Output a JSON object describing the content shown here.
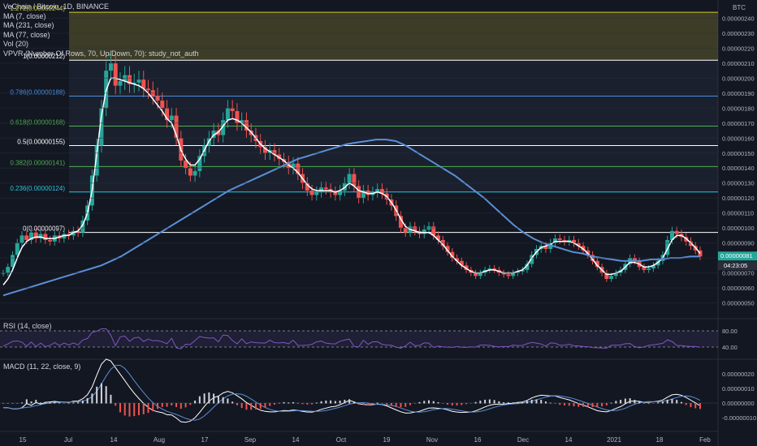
{
  "legend": {
    "title": "VeChain / Bitcoin, 1D, BINANCE",
    "ma7": "MA (7, close)",
    "ma231": "MA (231, close)",
    "ma77": "MA (77, close)",
    "vol": "Vol (20)",
    "vpvr": "VPVR (Number Of Rows, 70, Up/Down, 70): study_not_auth"
  },
  "axis_badge": "BTC",
  "rsi_label": "RSI (14, close)",
  "macd_label": "MACD (11, 22, close, 9)",
  "colors": {
    "background": "#131722",
    "up_candle": "#26a69a",
    "down_candle": "#ef5350",
    "ma_short": "#ffffff",
    "ma_long": "#5b8fd6",
    "rsi_line": "#7e57c2",
    "fib_green": "#4caf50",
    "fib_teal": "#26c6da",
    "fib_blue": "#2962ff"
  },
  "chart_data": {
    "type": "candlestick",
    "x_tick_labels": [
      "15",
      "Jul",
      "14",
      "Aug",
      "17",
      "Sep",
      "14",
      "Oct",
      "19",
      "Nov",
      "16",
      "Dec",
      "14",
      "2021",
      "18",
      "Feb"
    ],
    "price_axis": {
      "ylim": [
        4e-07,
        2.5e-06
      ],
      "tick_labels": [
        "0.00000050",
        "0.00000060",
        "0.00000070",
        "0.00000080",
        "0.00000090",
        "0.00000100",
        "0.00000110",
        "0.00000120",
        "0.00000130",
        "0.00000140",
        "0.00000150",
        "0.00000160",
        "0.00000170",
        "0.00000180",
        "0.00000190",
        "0.00000200",
        "0.00000210",
        "0.00000220",
        "0.00000230",
        "0.00000240"
      ],
      "current_price_label": "0.00000081",
      "countdown_label": "04:23:05"
    },
    "fib_levels": [
      {
        "label": "1.272(0.00000244)",
        "value": 2.44e-06,
        "color": "#d4d02a"
      },
      {
        "label": "1(0.00000212)",
        "value": 2.12e-06,
        "color": "#ffffff"
      },
      {
        "label": "0.786(0.00000188)",
        "value": 1.88e-06,
        "color": "#4a90e2"
      },
      {
        "label": "0.618(0.00000168)",
        "value": 1.68e-06,
        "color": "#4caf50"
      },
      {
        "label": "0.5(0.00000155)",
        "value": 1.55e-06,
        "color": "#ffffff"
      },
      {
        "label": "0.382(0.00000141)",
        "value": 1.41e-06,
        "color": "#4caf50"
      },
      {
        "label": "0.236(0.00000124)",
        "value": 1.24e-06,
        "color": "#26c6da"
      },
      {
        "label": "0(0.00000097)",
        "value": 9.7e-07,
        "color": "#ffffff"
      }
    ],
    "close_series": [
      0.7,
      0.74,
      0.82,
      0.9,
      0.95,
      0.92,
      0.97,
      0.93,
      0.96,
      0.92,
      0.91,
      0.95,
      0.93,
      0.96,
      0.95,
      0.98,
      0.97,
      1.05,
      1.15,
      1.35,
      1.55,
      1.8,
      2.05,
      2.1,
      1.95,
      1.98,
      2.02,
      1.96,
      1.97,
      1.99,
      1.93,
      1.92,
      1.88,
      1.85,
      1.8,
      1.72,
      1.75,
      1.6,
      1.45,
      1.4,
      1.35,
      1.38,
      1.48,
      1.55,
      1.6,
      1.65,
      1.62,
      1.72,
      1.8,
      1.78,
      1.7,
      1.72,
      1.65,
      1.62,
      1.58,
      1.54,
      1.5,
      1.52,
      1.49,
      1.46,
      1.44,
      1.4,
      1.43,
      1.36,
      1.3,
      1.25,
      1.22,
      1.24,
      1.27,
      1.26,
      1.24,
      1.22,
      1.25,
      1.3,
      1.36,
      1.28,
      1.2,
      1.25,
      1.22,
      1.24,
      1.26,
      1.23,
      1.19,
      1.15,
      1.08,
      1.0,
      0.97,
      1.01,
      0.98,
      0.96,
      0.99,
      1.01,
      0.95,
      0.92,
      0.88,
      0.84,
      0.8,
      0.78,
      0.75,
      0.72,
      0.7,
      0.68,
      0.7,
      0.72,
      0.73,
      0.72,
      0.7,
      0.69,
      0.68,
      0.7,
      0.71,
      0.72,
      0.76,
      0.82,
      0.86,
      0.88,
      0.86,
      0.9,
      0.93,
      0.92,
      0.91,
      0.92,
      0.9,
      0.88,
      0.85,
      0.82,
      0.78,
      0.74,
      0.7,
      0.66,
      0.68,
      0.7,
      0.72,
      0.76,
      0.8,
      0.78,
      0.74,
      0.72,
      0.73,
      0.75,
      0.78,
      0.82,
      0.92,
      0.98,
      0.96,
      0.94,
      0.91,
      0.88,
      0.85,
      0.81
    ],
    "ma_short_series": [
      0.62,
      0.66,
      0.72,
      0.8,
      0.87,
      0.91,
      0.93,
      0.94,
      0.94,
      0.93,
      0.93,
      0.93,
      0.94,
      0.95,
      0.95,
      0.97,
      0.98,
      1.02,
      1.1,
      1.25,
      1.5,
      1.75,
      1.92,
      2.0,
      2.0,
      1.99,
      1.98,
      1.97,
      1.96,
      1.95,
      1.93,
      1.9,
      1.86,
      1.82,
      1.78,
      1.73,
      1.7,
      1.62,
      1.52,
      1.46,
      1.42,
      1.42,
      1.46,
      1.52,
      1.58,
      1.62,
      1.64,
      1.68,
      1.72,
      1.73,
      1.72,
      1.7,
      1.67,
      1.64,
      1.6,
      1.56,
      1.53,
      1.51,
      1.49,
      1.47,
      1.45,
      1.42,
      1.4,
      1.37,
      1.33,
      1.29,
      1.26,
      1.25,
      1.25,
      1.25,
      1.25,
      1.24,
      1.25,
      1.27,
      1.3,
      1.28,
      1.25,
      1.24,
      1.23,
      1.23,
      1.24,
      1.23,
      1.21,
      1.17,
      1.12,
      1.06,
      1.01,
      0.99,
      0.98,
      0.97,
      0.97,
      0.97,
      0.95,
      0.92,
      0.89,
      0.85,
      0.81,
      0.78,
      0.75,
      0.73,
      0.71,
      0.7,
      0.7,
      0.71,
      0.72,
      0.72,
      0.71,
      0.7,
      0.7,
      0.7,
      0.71,
      0.72,
      0.75,
      0.8,
      0.84,
      0.87,
      0.88,
      0.89,
      0.91,
      0.91,
      0.91,
      0.91,
      0.9,
      0.88,
      0.86,
      0.83,
      0.79,
      0.75,
      0.72,
      0.69,
      0.69,
      0.7,
      0.71,
      0.74,
      0.77,
      0.77,
      0.76,
      0.74,
      0.74,
      0.75,
      0.77,
      0.8,
      0.86,
      0.92,
      0.95,
      0.95,
      0.93,
      0.9,
      0.87,
      0.83
    ],
    "ma_long_series": [
      0.55,
      0.57,
      0.59,
      0.61,
      0.63,
      0.65,
      0.67,
      0.69,
      0.71,
      0.73,
      0.75,
      0.78,
      0.81,
      0.85,
      0.89,
      0.93,
      0.97,
      1.01,
      1.05,
      1.09,
      1.13,
      1.17,
      1.21,
      1.25,
      1.28,
      1.31,
      1.34,
      1.37,
      1.4,
      1.43,
      1.46,
      1.48,
      1.5,
      1.52,
      1.54,
      1.56,
      1.57,
      1.58,
      1.59,
      1.59,
      1.58,
      1.55,
      1.51,
      1.47,
      1.43,
      1.39,
      1.35,
      1.3,
      1.25,
      1.2,
      1.14,
      1.08,
      1.02,
      0.97,
      0.93,
      0.9,
      0.88,
      0.86,
      0.84,
      0.83,
      0.81,
      0.8,
      0.79,
      0.78,
      0.78,
      0.78,
      0.79,
      0.79,
      0.8,
      0.8,
      0.81,
      0.81
    ],
    "rsi": {
      "levels": [
        80,
        40
      ],
      "tick_labels": [
        "80.00",
        "40.00"
      ]
    },
    "macd": {
      "tick_labels": [
        "0.00000020",
        "0.00000010",
        "0.00000000",
        "-0.00000010"
      ]
    }
  }
}
